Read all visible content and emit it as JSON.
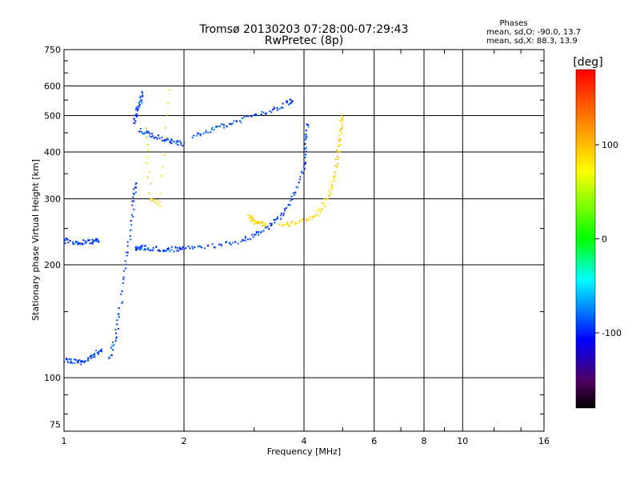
{
  "chart_data": {
    "type": "scatter",
    "title": "Tromsø 20130203 07:28:00-07:29:43",
    "subtitle": "RwPretec (8p)",
    "xlabel": "Frequency [MHz]",
    "ylabel": "Stationary phase Virtual Height [km]",
    "x_scale": "log",
    "y_scale": "log",
    "xlim": [
      1,
      16
    ],
    "ylim": [
      72,
      750
    ],
    "x_ticks": [
      1,
      2,
      4,
      6,
      8,
      10,
      16
    ],
    "x_tick_labels": [
      "1",
      "2",
      "4",
      "6",
      "8",
      "10",
      "16"
    ],
    "x_grid": [
      1,
      2,
      4,
      6,
      8,
      10,
      16
    ],
    "y_ticks": [
      75,
      100,
      200,
      300,
      400,
      500,
      600,
      750
    ],
    "y_tick_labels": [
      "75",
      "100",
      "200",
      "300",
      "400",
      "500",
      "600",
      "750"
    ],
    "y_grid": [
      100,
      200,
      300,
      400,
      500,
      600
    ],
    "grid": true,
    "stats": {
      "header": "Phases",
      "line_o": "mean, sd,O: -90.0, 13.7",
      "line_x": "mean, sd,X:  88.3, 13.9"
    },
    "colorbar": {
      "label": "[deg]",
      "range": [
        -180,
        180
      ],
      "ticks": [
        100,
        0,
        -100
      ],
      "tick_labels": [
        "100",
        "0",
        "-100"
      ]
    },
    "series": [
      {
        "mode": "O",
        "phase_deg": -90,
        "traces": [
          {
            "f": [
              1.0,
              1.05,
              1.1,
              1.15,
              1.2,
              1.24
            ],
            "h": [
              111,
              111,
              110,
              112,
              115,
              120
            ]
          },
          {
            "f": [
              1.0,
              1.05,
              1.1,
              1.15,
              1.2,
              1.22
            ],
            "h": [
              232,
              230,
              229,
              230,
              231,
              232
            ]
          },
          {
            "f": [
              1.3,
              1.34,
              1.38,
              1.42,
              1.46,
              1.5,
              1.52
            ],
            "h": [
              112,
              125,
              150,
              190,
              240,
              300,
              330
            ]
          },
          {
            "f": [
              1.5,
              1.55,
              1.6,
              1.7,
              1.8,
              1.9,
              2.0,
              2.2,
              2.5,
              2.8,
              3.0,
              3.2,
              3.4,
              3.6,
              3.8,
              4.0,
              4.05,
              4.08
            ],
            "h": [
              222,
              222,
              222,
              221,
              220,
              220,
              221,
              222,
              226,
              232,
              240,
              250,
              262,
              280,
              310,
              360,
              420,
              480
            ]
          },
          {
            "f": [
              1.55,
              1.62,
              1.7,
              1.8,
              1.9,
              2.0
            ],
            "h": [
              455,
              448,
              440,
              430,
              425,
              420
            ]
          },
          {
            "f": [
              2.1,
              2.3,
              2.5,
              2.7,
              3.0,
              3.3,
              3.6,
              3.8
            ],
            "h": [
              440,
              455,
              470,
              480,
              500,
              515,
              535,
              555
            ]
          },
          {
            "f": [
              1.5,
              1.52,
              1.55,
              1.58
            ],
            "h": [
              480,
              510,
              540,
              580
            ]
          }
        ]
      },
      {
        "mode": "X",
        "phase_deg": 88,
        "traces": [
          {
            "f": [
              2.9,
              3.0,
              3.1,
              3.2
            ],
            "h": [
              268,
              262,
              258,
              255
            ]
          },
          {
            "f": [
              3.5,
              3.7,
              4.0,
              4.3,
              4.5,
              4.7,
              4.8,
              4.9,
              4.95,
              5.0
            ],
            "h": [
              255,
              258,
              262,
              272,
              290,
              320,
              360,
              410,
              460,
              510
            ]
          },
          {
            "f": [
              1.6,
              1.65,
              1.75,
              1.85
            ],
            "h": [
              460,
              300,
              290,
              640
            ]
          }
        ]
      }
    ]
  }
}
